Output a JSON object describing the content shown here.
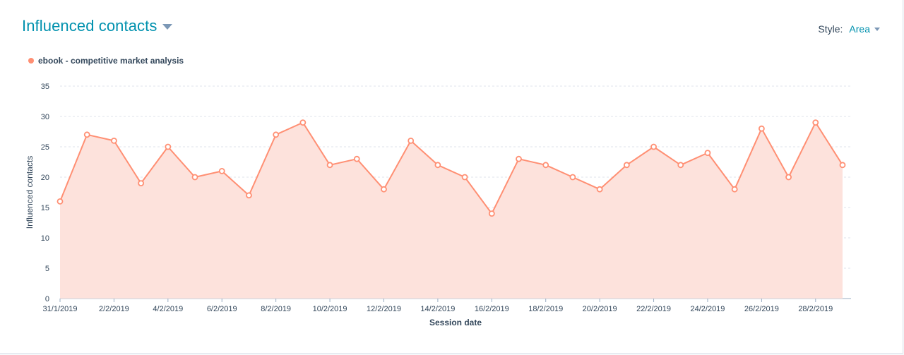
{
  "header": {
    "title": "Influenced contacts",
    "style_label": "Style:",
    "style_value": "Area"
  },
  "colors": {
    "accent": "#0091ae",
    "series": "#ff8f73",
    "area_fill": "#fde2dc"
  },
  "icons": {
    "title_dropdown": "caret-down-icon",
    "style_dropdown": "caret-down-icon"
  },
  "chart_data": {
    "type": "area",
    "xlabel": "Session date",
    "ylabel": "Influenced contacts",
    "ylim": [
      0,
      35
    ],
    "yticks": [
      0,
      5,
      10,
      15,
      20,
      25,
      30,
      35
    ],
    "grid": true,
    "legend_position": "top-left",
    "x": [
      "31/1/2019",
      "1/2/2019",
      "2/2/2019",
      "3/2/2019",
      "4/2/2019",
      "5/2/2019",
      "6/2/2019",
      "7/2/2019",
      "8/2/2019",
      "9/2/2019",
      "10/2/2019",
      "11/2/2019",
      "12/2/2019",
      "13/2/2019",
      "14/2/2019",
      "15/2/2019",
      "16/2/2019",
      "17/2/2019",
      "18/2/2019",
      "19/2/2019",
      "20/2/2019",
      "21/2/2019",
      "22/2/2019",
      "23/2/2019",
      "24/2/2019",
      "25/2/2019",
      "26/2/2019",
      "27/2/2019",
      "28/2/2019",
      "1/3/2019"
    ],
    "xtick_labels": [
      "31/1/2019",
      "2/2/2019",
      "4/2/2019",
      "6/2/2019",
      "8/2/2019",
      "10/2/2019",
      "12/2/2019",
      "14/2/2019",
      "16/2/2019",
      "18/2/2019",
      "20/2/2019",
      "22/2/2019",
      "24/2/2019",
      "26/2/2019",
      "28/2/2019"
    ],
    "series": [
      {
        "name": "ebook - competitive market analysis",
        "values": [
          16,
          27,
          26,
          19,
          25,
          20,
          21,
          17,
          27,
          29,
          22,
          23,
          18,
          26,
          22,
          20,
          14,
          23,
          22,
          20,
          18,
          22,
          25,
          22,
          24,
          18,
          28,
          20,
          29,
          22
        ]
      }
    ]
  }
}
